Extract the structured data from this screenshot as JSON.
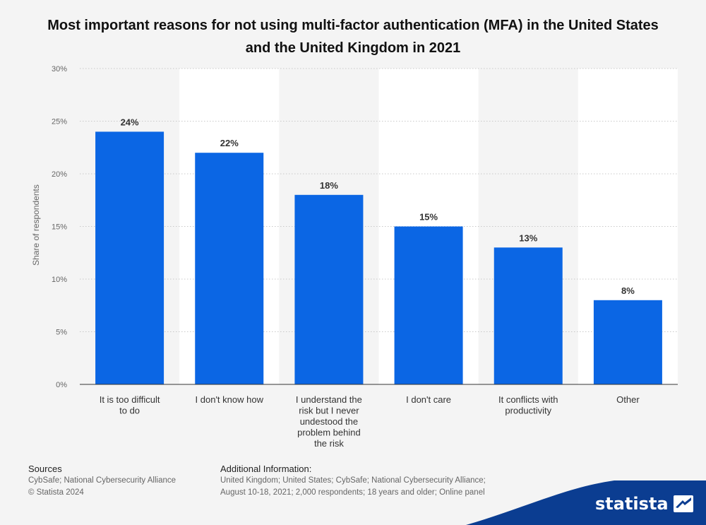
{
  "header": {
    "title": "Most important reasons for not using multi-factor authentication (MFA) in the United States and the United Kingdom in 2021"
  },
  "chart_data": {
    "type": "bar",
    "title": "Most important reasons for not using multi-factor authentication (MFA) in the United States and the United Kingdom in 2021",
    "ylabel": "Share of respondents",
    "xlabel": "",
    "ylim": [
      0,
      30
    ],
    "yticks": [
      "0%",
      "5%",
      "10%",
      "15%",
      "20%",
      "25%",
      "30%"
    ],
    "categories": [
      [
        "It is too difficult",
        "to do"
      ],
      [
        "I don't know how"
      ],
      [
        "I understand the",
        "risk but I never",
        "undestood the",
        "problem behind",
        "the risk"
      ],
      [
        "I don't care"
      ],
      [
        "It conflicts with",
        "productivity"
      ],
      [
        "Other"
      ]
    ],
    "values": [
      24,
      22,
      18,
      15,
      13,
      8
    ],
    "value_labels": [
      "24%",
      "22%",
      "18%",
      "15%",
      "13%",
      "8%"
    ],
    "grid": true,
    "bar_color": "#0b66e4"
  },
  "footer": {
    "sources_label": "Sources",
    "sources": "CybSafe; National Cybersecurity Alliance",
    "copyright": "© Statista 2024",
    "additional_label": "Additional Information:",
    "additional_line1": "United Kingdom; United States; CybSafe; National Cybersecurity Alliance;",
    "additional_line2": "August 10-18, 2021; 2,000 respondents; 18 years and older; Online panel"
  },
  "brand": {
    "name": "statista",
    "accent": "#0b3d91"
  }
}
